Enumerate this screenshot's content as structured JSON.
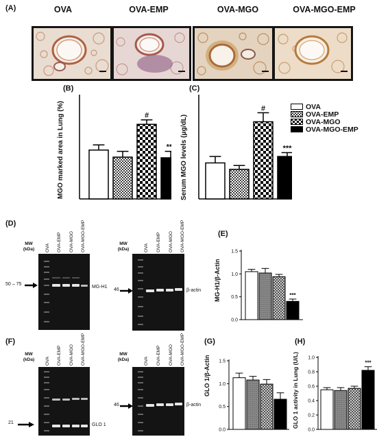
{
  "panel_a": {
    "label": "(A)",
    "groups": [
      "OVA",
      "OVA-EMP",
      "OVA-MGO",
      "OVA-MGO-EMP"
    ]
  },
  "legend": {
    "items": [
      {
        "label": "OVA",
        "pattern": "white"
      },
      {
        "label": "OVA-EMP",
        "pattern": "check"
      },
      {
        "label": "OVA-MGO",
        "pattern": "hatch"
      },
      {
        "label": "OVA-MGO-EMP",
        "pattern": "black"
      }
    ]
  },
  "blot_d": {
    "label": "(D)",
    "mw_label": "MW\n(kDa)",
    "lanes": [
      "OVA",
      "OVA-EMP",
      "OVA-MGO",
      "OVA-MGO-EMP"
    ],
    "left_marker": "50 – 75",
    "left_band": "MG-H1",
    "right_marker": "46",
    "right_band": "β-actin"
  },
  "blot_f": {
    "label": "(F)",
    "mw_label": "MW\n(kDa)",
    "lanes": [
      "OVA",
      "OVA-EMP",
      "OVA-MGO",
      "OVA-MGO-EMP"
    ],
    "left_marker": "21",
    "left_band": "GLO 1",
    "right_marker": "46",
    "right_band": "β-actin"
  },
  "colors": {
    "bar_edge": "#000000",
    "micro_frame": "#151515",
    "blot_bg": "#141414"
  },
  "chart_data": [
    {
      "id": "B",
      "label": "(B)",
      "type": "bar",
      "categories": [
        "OVA",
        "OVA-EMP",
        "OVA-MGO",
        "OVA-MGO-EMP"
      ],
      "values": [
        38,
        32.5,
        58,
        32
      ],
      "errors": [
        4,
        4.5,
        3.5,
        5
      ],
      "annotations": [
        "",
        "",
        "#",
        "***"
      ],
      "ylabel": "MGO marked area in Lung (%)",
      "ylim": [
        0,
        80
      ],
      "show_ticks": false
    },
    {
      "id": "C",
      "label": "(C)",
      "type": "bar",
      "categories": [
        "OVA",
        "OVA-EMP",
        "OVA-MGO",
        "OVA-MGO-EMP"
      ],
      "values": [
        14,
        11.5,
        30,
        16.5
      ],
      "errors": [
        2.5,
        1.5,
        3.5,
        1.5
      ],
      "annotations": [
        "",
        "",
        "#",
        "***"
      ],
      "ylabel": "Serum MGO levels (μg/dL)",
      "ylim": [
        0,
        40
      ],
      "show_ticks": false
    },
    {
      "id": "E",
      "label": "(E)",
      "type": "bar",
      "categories": [
        "OVA",
        "OVA-EMP",
        "OVA-MGO",
        "OVA-MGO-EMP"
      ],
      "values": [
        1.05,
        1.02,
        0.94,
        0.4
      ],
      "errors": [
        0.05,
        0.1,
        0.05,
        0.05
      ],
      "annotations": [
        "",
        "",
        "",
        "***"
      ],
      "ylabel": "MG-H1/β-Actin",
      "ylim": [
        0,
        1.5
      ],
      "ticks": [
        "0.0",
        "0.5",
        "1.0",
        "1.5"
      ],
      "tick_values": [
        0,
        0.5,
        1.0,
        1.5
      ],
      "show_ticks": true
    },
    {
      "id": "G",
      "label": "(G)",
      "type": "bar",
      "categories": [
        "OVA",
        "OVA-EMP",
        "OVA-MGO",
        "OVA-MGO-EMP"
      ],
      "values": [
        1.13,
        1.08,
        0.99,
        0.66
      ],
      "errors": [
        0.1,
        0.08,
        0.1,
        0.14
      ],
      "annotations": [
        "",
        "",
        "",
        ""
      ],
      "ylabel": "GLO 1/β-Actin",
      "ylim": [
        0,
        1.5
      ],
      "ticks": [
        "0.0",
        "0.5",
        "1.0",
        "1.5"
      ],
      "tick_values": [
        0,
        0.5,
        1.0,
        1.5
      ],
      "show_ticks": true
    },
    {
      "id": "H",
      "label": "(H)",
      "type": "bar",
      "categories": [
        "OVA",
        "OVA-EMP",
        "OVA-MGO",
        "OVA-MGO-EMP"
      ],
      "values": [
        0.55,
        0.54,
        0.57,
        0.82
      ],
      "errors": [
        0.03,
        0.04,
        0.03,
        0.05
      ],
      "annotations": [
        "",
        "",
        "",
        "***"
      ],
      "ylabel": "GLO 1 activity in Lung (U/L)",
      "ylim": [
        0,
        1.0
      ],
      "ticks": [
        "0.0",
        "0.2",
        "0.4",
        "0.6",
        "0.8",
        "1.0"
      ],
      "tick_values": [
        0,
        0.2,
        0.4,
        0.6,
        0.8,
        1.0
      ],
      "show_ticks": true
    }
  ]
}
